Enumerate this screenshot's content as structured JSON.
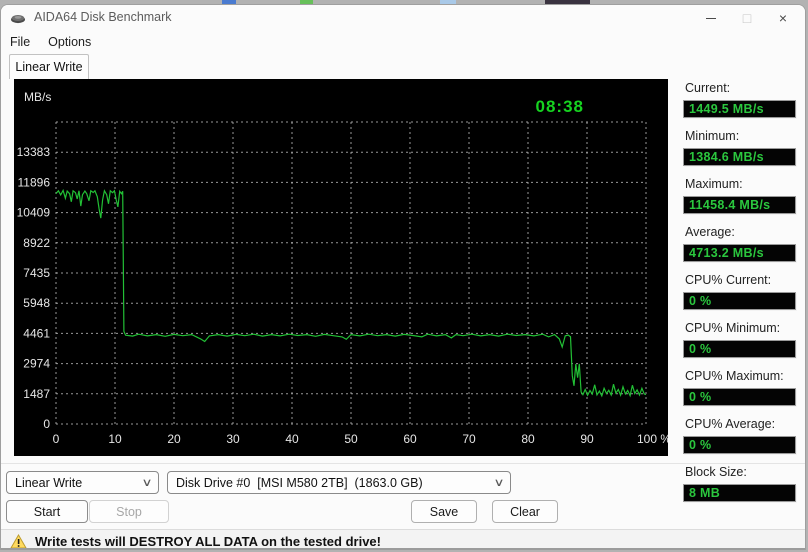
{
  "window": {
    "title": "AIDA64 Disk Benchmark",
    "controls": {
      "minimize": "minimize",
      "maximize": "maximize",
      "close": "×"
    }
  },
  "menu": {
    "items": [
      "File",
      "Options"
    ]
  },
  "tab": {
    "label": "Linear Write"
  },
  "chart_data": {
    "type": "line",
    "clock": "08:38",
    "unit_label": "MB/s",
    "xlim": [
      0,
      100
    ],
    "ylim": [
      0,
      14870
    ],
    "y_grid_step": 1487,
    "y_tick_labels": [
      "0",
      "1487",
      "2974",
      "4461",
      "5948",
      "7435",
      "8922",
      "10409",
      "11896",
      "13383"
    ],
    "x_ticks": [
      0,
      10,
      20,
      30,
      40,
      50,
      60,
      70,
      80,
      90,
      100
    ],
    "x_tick_labels": [
      "0",
      "10",
      "20",
      "30",
      "40",
      "50",
      "60",
      "70",
      "80",
      "90",
      "100 %"
    ],
    "grid": true,
    "colors": {
      "background": "#000000",
      "grid": "#b4b4b4",
      "axis_text": "#e6e6e6",
      "line": "#22c035",
      "clock": "#16d320"
    },
    "series": [
      {
        "name": "Linear Write",
        "points": [
          [
            0,
            11350
          ],
          [
            0.4,
            11480
          ],
          [
            0.8,
            11280
          ],
          [
            1.2,
            11500
          ],
          [
            1.6,
            11120
          ],
          [
            1.9,
            11470
          ],
          [
            2.3,
            11340
          ],
          [
            2.6,
            10940
          ],
          [
            2.9,
            11480
          ],
          [
            3.3,
            11390
          ],
          [
            3.6,
            11080
          ],
          [
            3.9,
            11480
          ],
          [
            4.2,
            10730
          ],
          [
            4.5,
            11290
          ],
          [
            4.9,
            11470
          ],
          [
            5.2,
            11340
          ],
          [
            5.6,
            10990
          ],
          [
            5.9,
            11480
          ],
          [
            6.3,
            11400
          ],
          [
            6.6,
            11480
          ],
          [
            7,
            11190
          ],
          [
            7.3,
            10590
          ],
          [
            7.6,
            10140
          ],
          [
            7.9,
            11040
          ],
          [
            8.2,
            11480
          ],
          [
            8.6,
            11290
          ],
          [
            8.9,
            10840
          ],
          [
            9.2,
            11480
          ],
          [
            9.6,
            11390
          ],
          [
            9.9,
            11480
          ],
          [
            10.2,
            11040
          ],
          [
            10.5,
            10690
          ],
          [
            10.8,
            11458
          ],
          [
            11.1,
            11340
          ],
          [
            11.3,
            11458
          ],
          [
            11.5,
            4560
          ],
          [
            11.8,
            4370
          ],
          [
            13,
            4330
          ],
          [
            14,
            4420
          ],
          [
            15.5,
            4340
          ],
          [
            17,
            4400
          ],
          [
            18.5,
            4320
          ],
          [
            20,
            4410
          ],
          [
            21.5,
            4350
          ],
          [
            23,
            4400
          ],
          [
            24.5,
            4190
          ],
          [
            25.2,
            4060
          ],
          [
            26,
            4340
          ],
          [
            27.5,
            4400
          ],
          [
            29,
            4330
          ],
          [
            30.5,
            4410
          ],
          [
            32,
            4350
          ],
          [
            33.5,
            4420
          ],
          [
            35,
            4330
          ],
          [
            36.5,
            4400
          ],
          [
            38,
            4340
          ],
          [
            39.5,
            4420
          ],
          [
            41,
            4360
          ],
          [
            42.5,
            4400
          ],
          [
            44,
            4320
          ],
          [
            45.5,
            4410
          ],
          [
            47,
            4350
          ],
          [
            48.5,
            4290
          ],
          [
            49.2,
            4170
          ],
          [
            50,
            4400
          ],
          [
            51.5,
            4340
          ],
          [
            53,
            4420
          ],
          [
            54.5,
            4350
          ],
          [
            56,
            4400
          ],
          [
            57.5,
            4330
          ],
          [
            59,
            4410
          ],
          [
            60.5,
            4360
          ],
          [
            62,
            4290
          ],
          [
            63,
            4420
          ],
          [
            64.5,
            4340
          ],
          [
            66,
            4400
          ],
          [
            67,
            4240
          ],
          [
            67.8,
            4400
          ],
          [
            69,
            4350
          ],
          [
            70.5,
            4420
          ],
          [
            72,
            4340
          ],
          [
            73.5,
            4400
          ],
          [
            75,
            4330
          ],
          [
            76.5,
            4420
          ],
          [
            78,
            4360
          ],
          [
            79.5,
            4400
          ],
          [
            81,
            4340
          ],
          [
            82.5,
            4420
          ],
          [
            83.5,
            4290
          ],
          [
            84.5,
            4400
          ],
          [
            85.3,
            4190
          ],
          [
            85.8,
            3790
          ],
          [
            86.3,
            4340
          ],
          [
            86.8,
            4380
          ],
          [
            87.2,
            4300
          ],
          [
            87.5,
            2380
          ],
          [
            87.8,
            1880
          ],
          [
            88.1,
            2950
          ],
          [
            88.4,
            2280
          ],
          [
            88.7,
            2960
          ],
          [
            89,
            1580
          ],
          [
            89.3,
            1450
          ],
          [
            89.7,
            1700
          ],
          [
            90.1,
            1420
          ],
          [
            90.5,
            1650
          ],
          [
            90.9,
            1480
          ],
          [
            91.3,
            1930
          ],
          [
            91.7,
            1440
          ],
          [
            92.1,
            1620
          ],
          [
            92.5,
            1385
          ],
          [
            92.9,
            1760
          ],
          [
            93.3,
            1500
          ],
          [
            93.7,
            1660
          ],
          [
            94.1,
            1430
          ],
          [
            94.5,
            1960
          ],
          [
            94.9,
            1520
          ],
          [
            95.3,
            1700
          ],
          [
            95.7,
            1420
          ],
          [
            96.1,
            1830
          ],
          [
            96.5,
            1480
          ],
          [
            96.9,
            1650
          ],
          [
            97.3,
            1400
          ],
          [
            97.7,
            1910
          ],
          [
            98.1,
            1500
          ],
          [
            98.5,
            1680
          ],
          [
            98.9,
            1430
          ],
          [
            99.3,
            1760
          ],
          [
            99.7,
            1480
          ],
          [
            100,
            1449.5
          ]
        ]
      }
    ]
  },
  "stats": [
    {
      "label": "Current:",
      "value": "1449.5 MB/s",
      "section_gap": false
    },
    {
      "label": "Minimum:",
      "value": "1384.6 MB/s",
      "section_gap": false
    },
    {
      "label": "Maximum:",
      "value": "11458.4 MB/s",
      "section_gap": false
    },
    {
      "label": "Average:",
      "value": "4713.2 MB/s",
      "section_gap": false
    },
    {
      "label": "CPU% Current:",
      "value": "0 %",
      "section_gap": true
    },
    {
      "label": "CPU% Minimum:",
      "value": "0 %",
      "section_gap": false
    },
    {
      "label": "CPU% Maximum:",
      "value": "0 %",
      "section_gap": false
    },
    {
      "label": "CPU% Average:",
      "value": "0 %",
      "section_gap": false
    },
    {
      "label": "Block Size:",
      "value": "8 MB",
      "section_gap": "small"
    }
  ],
  "controls": {
    "test_select": {
      "value": "Linear Write"
    },
    "drive_select": {
      "value": "Disk Drive #0  [MSI M580 2TB]  (1863.0 GB)"
    },
    "buttons": [
      {
        "label": "Start",
        "enabled": true
      },
      {
        "label": "Stop",
        "enabled": false
      },
      {
        "label": "Save",
        "enabled": true
      },
      {
        "label": "Clear",
        "enabled": true
      }
    ]
  },
  "status_bar": {
    "text": "Write tests will DESTROY ALL DATA on the tested drive!"
  },
  "desktop_strip": {
    "base_color": "#b2b2b2",
    "segments": [
      {
        "x": 222,
        "w": 14,
        "color": "#4a7bd0"
      },
      {
        "x": 300,
        "w": 13,
        "color": "#67c05a"
      },
      {
        "x": 440,
        "w": 16,
        "color": "#a9c9e8"
      },
      {
        "x": 545,
        "w": 45,
        "color": "#3a3340"
      }
    ]
  }
}
